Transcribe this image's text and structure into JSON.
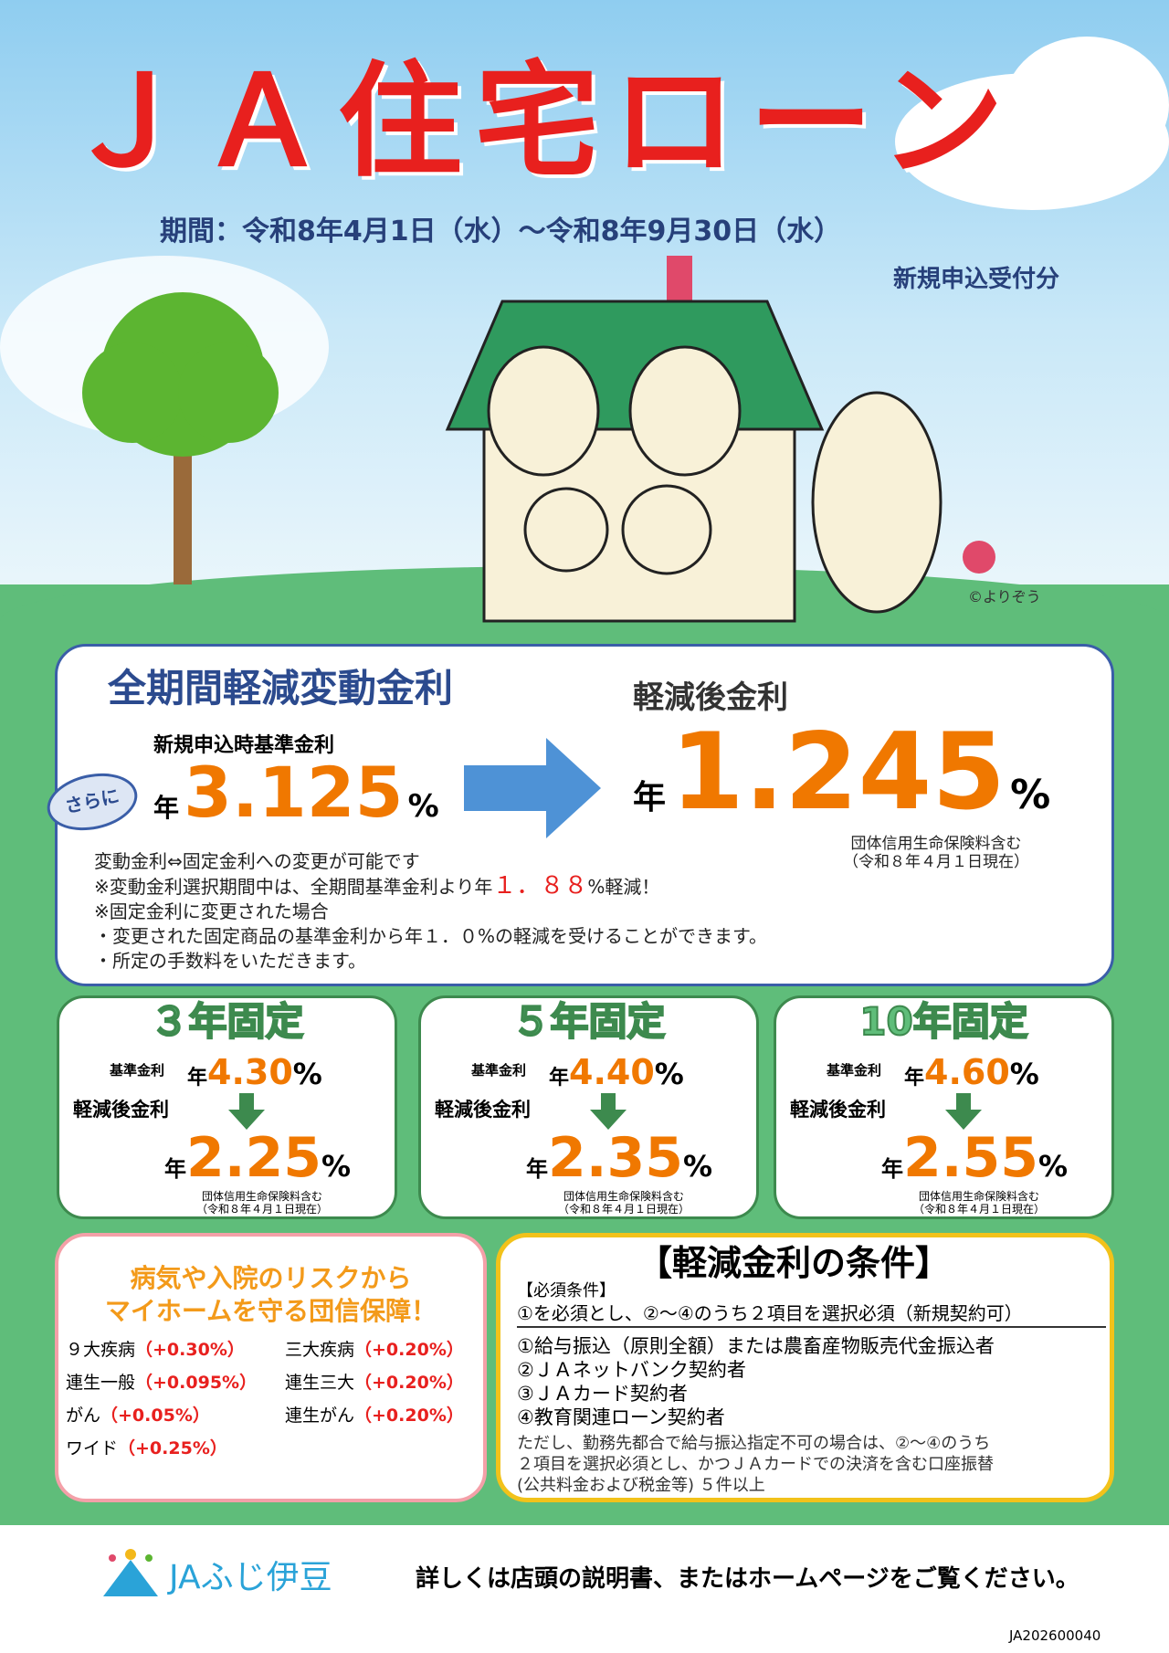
{
  "header": {
    "title": "ＪＡ住宅ローン",
    "period": "期間：令和8年4月1日（水）～令和8年9月30日（水）",
    "scope": "新規申込受付分",
    "copyright": "©よりぞう"
  },
  "variable": {
    "heading": "全期間軽減変動金利",
    "base_label": "新規申込時基準金利",
    "year": "年",
    "base_rate": "3.125",
    "pct": "%",
    "badge": "さらに",
    "after_label": "軽減後金利",
    "after_rate": "1.245",
    "note1": "団体信用生命保険料含む",
    "note2": "（令和８年４月１日現在）",
    "lines": [
      "変動金利⇔固定金利への変更が可能です",
      "※変動金利選択期間中は、全期間基準金利より年",
      "１．８８",
      "%軽減！",
      "※固定金利に変更された場合",
      "・変更された固定商品の基準金利から年１．０%の軽減を受けることができます。",
      "・所定の手数料をいただきます。"
    ]
  },
  "fixed": [
    {
      "title": "３年固定",
      "base_label": "基準金利",
      "year": "年",
      "base": "4.30",
      "pct": "%",
      "after_label": "軽減後金利",
      "after": "2.25",
      "note1": "団体信用生命保険料含む",
      "note2": "（令和８年４月１日現在）"
    },
    {
      "title": "５年固定",
      "base_label": "基準金利",
      "year": "年",
      "base": "4.40",
      "pct": "%",
      "after_label": "軽減後金利",
      "after": "2.35",
      "note1": "団体信用生命保険料含む",
      "note2": "（令和８年４月１日現在）"
    },
    {
      "title": "10年固定",
      "base_label": "基準金利",
      "year": "年",
      "base": "4.60",
      "pct": "%",
      "after_label": "軽減後金利",
      "after": "2.55",
      "note1": "団体信用生命保険料含む",
      "note2": "（令和８年４月１日現在）"
    }
  ],
  "insurance": {
    "heading1": "病気や入院のリスクから",
    "heading2": "マイホームを守る団信保障！",
    "items": [
      {
        "name": "９大疾病",
        "rate": "（+0.30%）"
      },
      {
        "name": "三大疾病",
        "rate": "（+0.20%）"
      },
      {
        "name": "連生一般",
        "rate": "（+0.095%）"
      },
      {
        "name": "連生三大",
        "rate": "（+0.20%）"
      },
      {
        "name": "がん",
        "rate": "（+0.05%）"
      },
      {
        "name": "連生がん",
        "rate": "（+0.20%）"
      },
      {
        "name": "ワイド",
        "rate": "（+0.25%）"
      }
    ]
  },
  "conditions": {
    "title": "【軽減金利の条件】",
    "required": "【必須条件】",
    "rule": "①を必須とし、②～④のうち２項目を選択必須（新規契約可）",
    "items": [
      "①給与振込（原則全額）または農畜産物販売代金振込者",
      "②ＪＡネットバンク契約者",
      "③ＪＡカード契約者",
      "④教育関連ローン契約者"
    ],
    "note": [
      "ただし、勤務先都合で給与振込指定不可の場合は、②～④のうち",
      "２項目を選択必須とし、かつＪＡカードでの決済を含む口座振替",
      "(公共料金および税金等) ５件以上"
    ]
  },
  "footer": {
    "logo": "JAふじ伊豆",
    "text": "詳しくは店頭の説明書、またはホームページをご覧ください。",
    "code": "JA202600040"
  }
}
